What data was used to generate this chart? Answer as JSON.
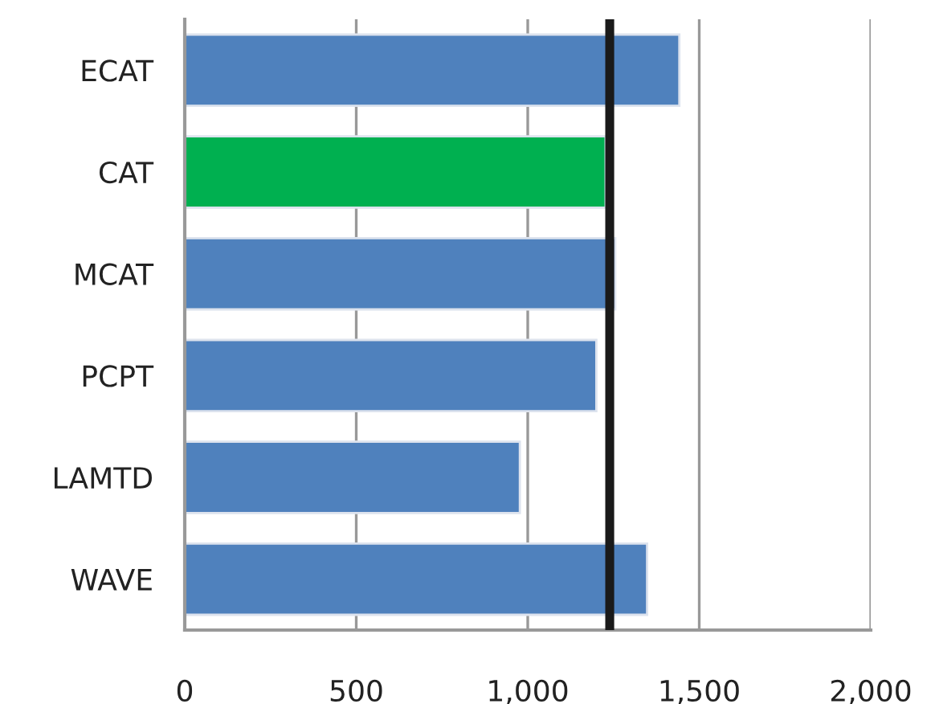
{
  "chart_data": {
    "type": "bar",
    "orientation": "horizontal",
    "categories": [
      "ECAT",
      "CAT",
      "MCAT",
      "PCPT",
      "LAMTD",
      "WAVE"
    ],
    "values": [
      1442,
      1227,
      1255,
      1200,
      977,
      1348
    ],
    "colors": [
      "#4f81bd",
      "#00b050",
      "#4f81bd",
      "#4f81bd",
      "#4f81bd",
      "#4f81bd"
    ],
    "xlim": [
      0,
      2000
    ],
    "xticks": [
      0,
      500,
      {
        "value": 1000,
        "label": "1,000"
      },
      {
        "value": 1500,
        "label": "1,500"
      },
      {
        "value": 2000,
        "label": "2,000"
      }
    ],
    "grid": "x",
    "ref_lines": [
      {
        "axis": "x",
        "value": 1239,
        "color": "#1a1a1a"
      }
    ]
  }
}
